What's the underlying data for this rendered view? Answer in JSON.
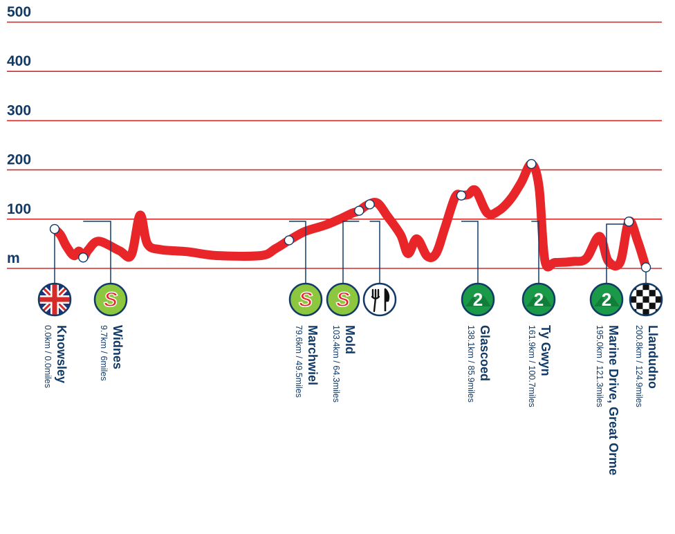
{
  "chart_data": {
    "type": "area",
    "ylabel": "m",
    "ylim": [
      0,
      500
    ],
    "yticks": [
      "m",
      "100",
      "200",
      "300",
      "400",
      "500"
    ],
    "grid": true,
    "xlim": [
      0,
      200.8
    ],
    "profile": [
      [
        0.0,
        80
      ],
      [
        2.0,
        68
      ],
      [
        4.0,
        45
      ],
      [
        6.5,
        26
      ],
      [
        8.3,
        35
      ],
      [
        9.7,
        22
      ],
      [
        11.5,
        38
      ],
      [
        15.0,
        55
      ],
      [
        22.0,
        36
      ],
      [
        26.0,
        27
      ],
      [
        29.0,
        108
      ],
      [
        31.5,
        50
      ],
      [
        36.0,
        38
      ],
      [
        45.0,
        34
      ],
      [
        55.0,
        26
      ],
      [
        70.0,
        26
      ],
      [
        75.0,
        40
      ],
      [
        79.6,
        57
      ],
      [
        85.0,
        75
      ],
      [
        92.0,
        88
      ],
      [
        97.5,
        102
      ],
      [
        101.0,
        112
      ],
      [
        103.4,
        117
      ],
      [
        106.0,
        128
      ],
      [
        109.5,
        133
      ],
      [
        113.0,
        106
      ],
      [
        117.5,
        68
      ],
      [
        120.0,
        30
      ],
      [
        123.0,
        60
      ],
      [
        126.5,
        25
      ],
      [
        129.5,
        30
      ],
      [
        132.5,
        82
      ],
      [
        136.0,
        145
      ],
      [
        138.1,
        148
      ],
      [
        140.5,
        150
      ],
      [
        143.0,
        158
      ],
      [
        147.0,
        112
      ],
      [
        151.0,
        118
      ],
      [
        155.0,
        142
      ],
      [
        158.5,
        175
      ],
      [
        161.9,
        212
      ],
      [
        164.5,
        165
      ],
      [
        166.5,
        15
      ],
      [
        170.0,
        12
      ],
      [
        176.0,
        14
      ],
      [
        180.5,
        20
      ],
      [
        185.0,
        65
      ],
      [
        188.0,
        15
      ],
      [
        192.0,
        12
      ],
      [
        195.0,
        95
      ],
      [
        198.0,
        55
      ],
      [
        200.8,
        2
      ]
    ],
    "checkpoints": [
      {
        "name": "Knowsley",
        "distance": "0.0km / 0.0miles",
        "km": 0.0,
        "alt": 80,
        "icon": "start-flag-icon"
      },
      {
        "name": "Widnes",
        "distance": "9.7km / 6miles",
        "km": 9.7,
        "alt": 22,
        "icon": "sprint-icon"
      },
      {
        "name": "Marchwiel",
        "distance": "79.6km / 49.5miles",
        "km": 79.6,
        "alt": 57,
        "icon": "sprint-icon"
      },
      {
        "name": "Mold",
        "distance": "103.4km / 64.3miles",
        "km": 103.4,
        "alt": 117,
        "icon": "sprint-icon"
      },
      {
        "name": "",
        "distance": "",
        "km": 107.0,
        "alt": 130,
        "icon": "feed-zone-icon"
      },
      {
        "name": "Glascoed",
        "distance": "138.1km / 85.9miles",
        "km": 138.1,
        "alt": 148,
        "icon": "climb-cat2-icon"
      },
      {
        "name": "Ty Gwyn",
        "distance": "161.9km / 100.7miles",
        "km": 161.9,
        "alt": 212,
        "icon": "climb-cat2-icon"
      },
      {
        "name": "Marine Drive, Great Orme",
        "distance": "195.0km / 121.3miles",
        "km": 195.0,
        "alt": 95,
        "icon": "climb-cat2-icon"
      },
      {
        "name": "Llandudno",
        "distance": "200.8km / 124.9miles",
        "km": 200.8,
        "alt": 2,
        "icon": "finish-flag-icon"
      }
    ],
    "icon_labels": {
      "sprint": "S",
      "climb": "2"
    },
    "colors": {
      "profile": "#e8262a",
      "grid": "#d42a2a",
      "text": "#123a66",
      "sprint": "#8dc63f",
      "climb": "#1a9a48"
    }
  }
}
